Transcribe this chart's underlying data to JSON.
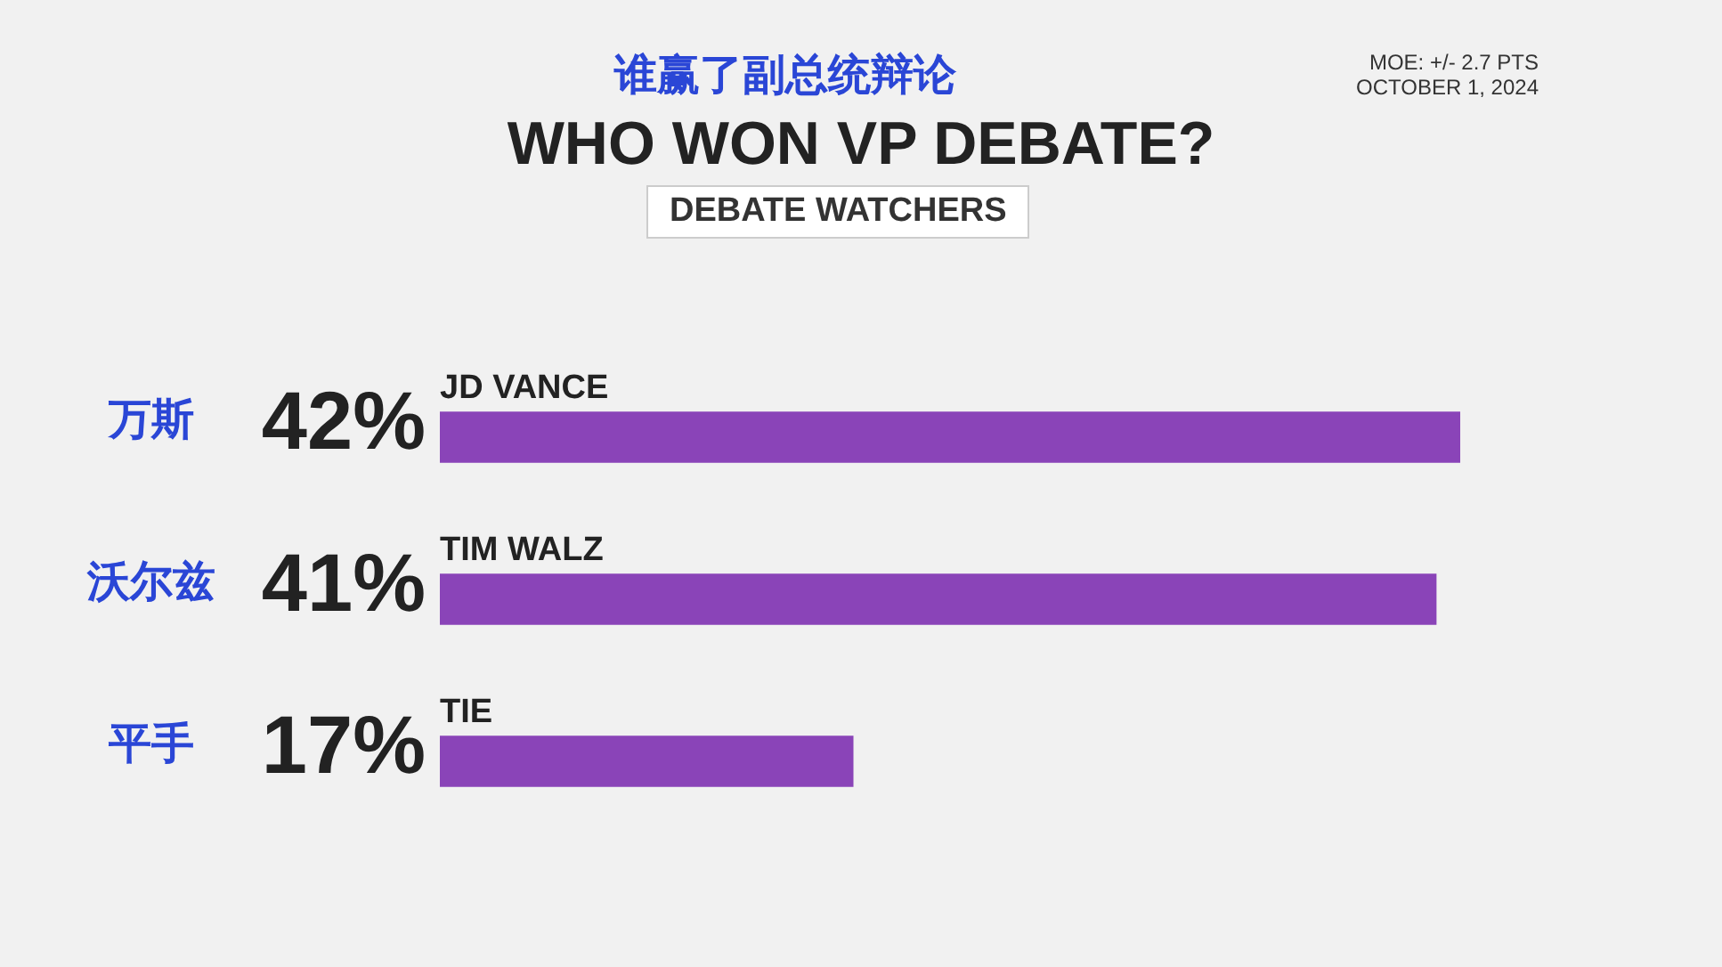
{
  "chart_data": {
    "type": "bar",
    "orientation": "horizontal",
    "title": "WHO WON VP DEBATE?",
    "subtitle": "DEBATE WATCHERS",
    "categories": [
      "JD VANCE",
      "TIM WALZ",
      "TIE"
    ],
    "values": [
      42,
      41,
      17
    ],
    "color": "#8a44b8",
    "value_labels": [
      "42%",
      "41%",
      "17%"
    ],
    "legend": false,
    "annotations": [
      "谁赢了副总统辩论",
      "MOE: +/- 2.7 PTS",
      "OCTOBER 1, 2024",
      "万斯",
      "沃尔兹",
      "平手"
    ]
  }
}
